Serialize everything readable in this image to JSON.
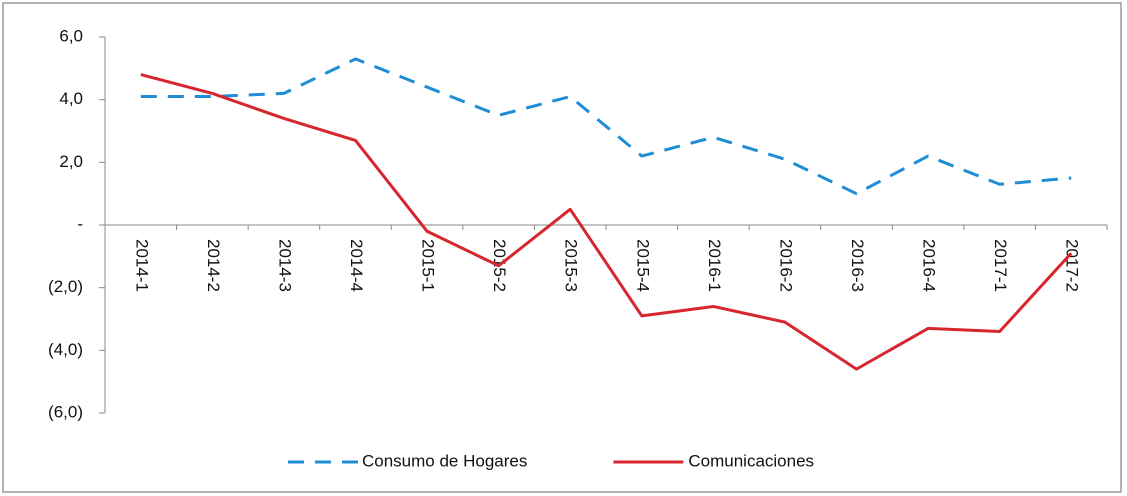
{
  "chart_data": {
    "type": "line",
    "categories": [
      "2014-1",
      "2014-2",
      "2014-3",
      "2014-4",
      "2015-1",
      "2015-2",
      "2015-3",
      "2015-4",
      "2016-1",
      "2016-2",
      "2016-3",
      "2016-4",
      "2017-1",
      "2017-2"
    ],
    "series": [
      {
        "name": "Consumo de Hogares",
        "color": "#1f8dd6",
        "dashed": true,
        "values": [
          4.1,
          4.1,
          4.2,
          5.3,
          4.4,
          3.5,
          4.1,
          2.2,
          2.8,
          2.1,
          1.0,
          2.2,
          1.3,
          1.5
        ]
      },
      {
        "name": "Comunicaciones",
        "color": "#d7262e",
        "dashed": false,
        "values": [
          4.8,
          4.2,
          3.4,
          2.7,
          -0.2,
          -1.3,
          0.5,
          -2.9,
          -2.6,
          -3.1,
          -4.6,
          -3.3,
          -3.4,
          -0.9
        ]
      }
    ],
    "ylim": [
      -6,
      6
    ],
    "yticks": [
      {
        "value": 6,
        "label": "6,0"
      },
      {
        "value": 4,
        "label": "4,0"
      },
      {
        "value": 2,
        "label": "2,0"
      },
      {
        "value": 0,
        "label": "-"
      },
      {
        "value": -2,
        "label": "(2,0)"
      },
      {
        "value": -4,
        "label": "(4,0)"
      },
      {
        "value": -6,
        "label": "(6,0)"
      }
    ],
    "legend": "bottom"
  }
}
